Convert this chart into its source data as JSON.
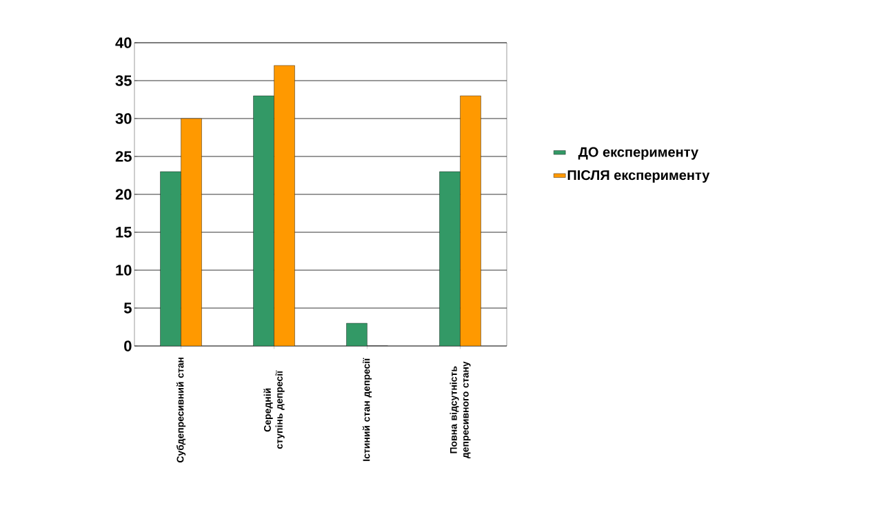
{
  "chart_data": {
    "type": "bar",
    "categories": [
      "Субдепресивний стан",
      "Середній ступінь депресії",
      "Істиний стан депресії",
      "Повна відсутність депресивного стану"
    ],
    "series": [
      {
        "name": "ДО експерименту",
        "color": "#339966",
        "values": [
          23,
          33,
          3,
          23
        ]
      },
      {
        "name": "ПІСЛЯ експерименту",
        "color": "#ff9900",
        "values": [
          30,
          37,
          0,
          33
        ]
      }
    ],
    "ylim": [
      0,
      40
    ],
    "yticks": [
      0,
      5,
      10,
      15,
      20,
      25,
      30,
      35,
      40
    ],
    "grid": "y",
    "legend": "right"
  }
}
